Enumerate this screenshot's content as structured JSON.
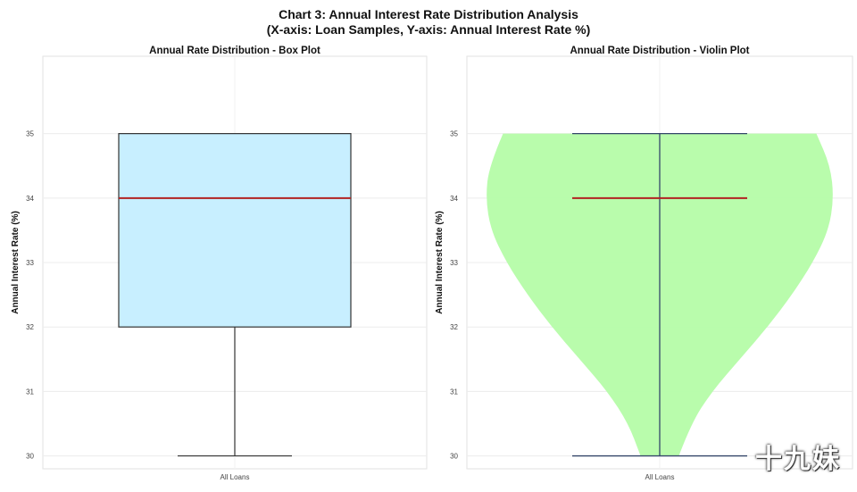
{
  "figure": {
    "title_line1": "Chart 3: Annual Interest Rate Distribution Analysis",
    "title_line2": "(X-axis: Loan Samples, Y-axis: Annual Interest Rate %)",
    "watermark": "十九妹"
  },
  "chart_data": [
    {
      "type": "box",
      "title": "Annual Rate Distribution - Box Plot",
      "ylabel": "Annual Interest Rate (%)",
      "xlabel": "",
      "categories": [
        "All Loans"
      ],
      "ylim": [
        29.8,
        36.2
      ],
      "yticks": [
        30,
        31,
        32,
        33,
        34,
        35
      ],
      "grid": true,
      "box": {
        "min": 30,
        "q1": 32,
        "median": 34,
        "q3": 35,
        "max": 35
      },
      "colors": {
        "box_fill": "#c8efff",
        "median": "#b22222",
        "edge": "#333333"
      }
    },
    {
      "type": "violin",
      "title": "Annual Rate Distribution - Violin Plot",
      "ylabel": "Annual Interest Rate (%)",
      "xlabel": "",
      "categories": [
        "All Loans"
      ],
      "ylim": [
        29.8,
        36.2
      ],
      "yticks": [
        30,
        31,
        32,
        33,
        34,
        35
      ],
      "grid": true,
      "violin": {
        "min": 30,
        "median": 34,
        "max": 35,
        "density": [
          {
            "y": 30.0,
            "w": 0.11
          },
          {
            "y": 30.5,
            "w": 0.18
          },
          {
            "y": 31.0,
            "w": 0.3
          },
          {
            "y": 31.5,
            "w": 0.46
          },
          {
            "y": 32.0,
            "w": 0.62
          },
          {
            "y": 32.5,
            "w": 0.76
          },
          {
            "y": 33.0,
            "w": 0.88
          },
          {
            "y": 33.5,
            "w": 0.97
          },
          {
            "y": 34.0,
            "w": 1.0
          },
          {
            "y": 34.5,
            "w": 0.98
          },
          {
            "y": 35.0,
            "w": 0.9
          }
        ]
      },
      "colors": {
        "violin_fill": "#b5fca8",
        "median": "#b22222",
        "line": "#34466a"
      }
    }
  ]
}
